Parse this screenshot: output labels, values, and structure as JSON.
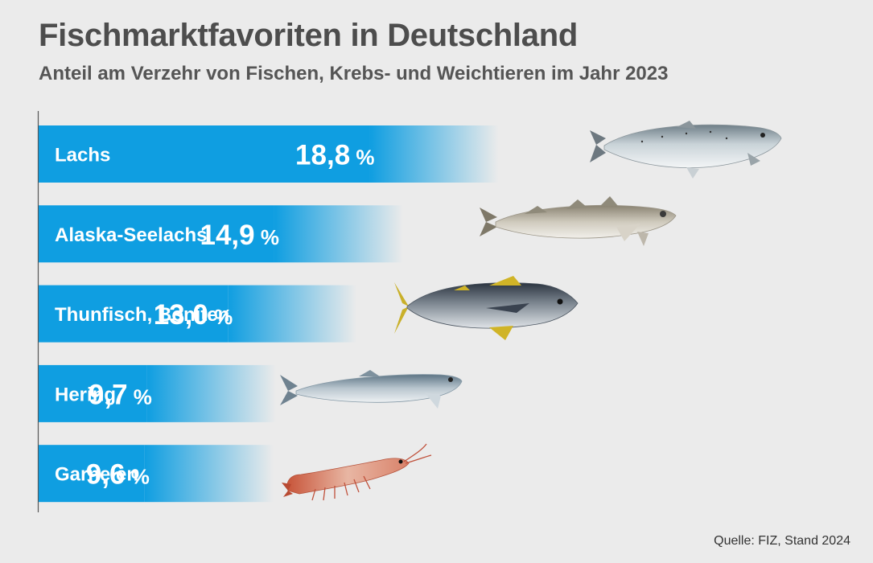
{
  "header": {
    "title": "Fischmarktfavoriten in Deutschland",
    "subtitle": "Anteil am Verzehr von Fischen, Krebs- und Weichtieren im Jahr 2023"
  },
  "footer": {
    "source": "Quelle:  FIZ, Stand 2024"
  },
  "colors": {
    "bar": "#0f9ee1",
    "bar_dark": "#0a8fd6",
    "axis": "#555555",
    "background": "#ebebeb"
  },
  "chart_data": {
    "type": "bar",
    "orientation": "horizontal",
    "categories": [
      "Lachs",
      "Alaska-Seelachs",
      "Thunfisch, Boniten",
      "Hering",
      "Garnelen"
    ],
    "values": [
      18.8,
      14.9,
      13.0,
      9.7,
      9.6
    ],
    "value_labels": [
      "18,8",
      "14,9",
      "13,0",
      "9,7",
      "9,6"
    ],
    "unit": "%",
    "icons": [
      "salmon-icon",
      "pollock-icon",
      "tuna-icon",
      "herring-icon",
      "shrimp-icon"
    ],
    "title": "Fischmarktfavoriten in Deutschland",
    "subtitle": "Anteil am Verzehr von Fischen, Krebs- und Weichtieren im Jahr 2023",
    "xlim": [
      0,
      20
    ],
    "grid": false,
    "legend": "none"
  }
}
